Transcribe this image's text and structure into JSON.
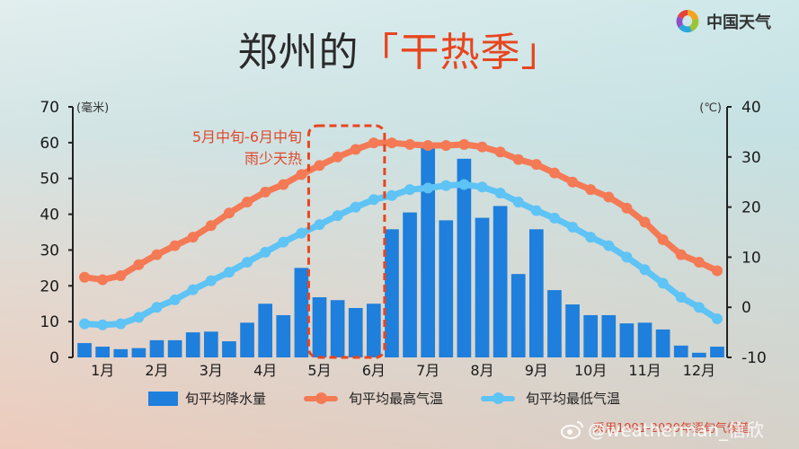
{
  "header": {
    "title_prefix": "郑州的",
    "title_highlight": "「干热季」",
    "logo_text": "中国天气"
  },
  "annotation": {
    "line1": "5月中旬-6月中旬",
    "line2": "雨少天热"
  },
  "axes": {
    "left_unit": "(毫米)",
    "right_unit": "(℃)",
    "left_ticks": [
      "0",
      "10",
      "20",
      "30",
      "40",
      "50",
      "60",
      "70"
    ],
    "right_ticks": [
      "-10",
      "0",
      "10",
      "20",
      "30",
      "40"
    ],
    "x_ticks": [
      "1月",
      "2月",
      "3月",
      "4月",
      "5月",
      "6月",
      "7月",
      "8月",
      "9月",
      "10月",
      "11月",
      "12月"
    ]
  },
  "legend": {
    "precip": "旬平均降水量",
    "tmax": "旬平均最高气温",
    "tmin": "旬平均最低气温"
  },
  "footer": {
    "watermark": "@weatherman_信欣",
    "source": "采用1991-2020年逐旬气候值"
  },
  "colors": {
    "bar": "#1e7fdc",
    "tmax": "#f47a55",
    "tmin": "#5ec3f5",
    "highlight": "#e8451f"
  },
  "chart_data": {
    "type": "bar+line",
    "title": "郑州的「干热季」",
    "categories": [
      "1月上",
      "1月中",
      "1月下",
      "2月上",
      "2月中",
      "2月下",
      "3月上",
      "3月中",
      "3月下",
      "4月上",
      "4月中",
      "4月下",
      "5月上",
      "5月中",
      "5月下",
      "6月上",
      "6月中",
      "6月下",
      "7月上",
      "7月中",
      "7月下",
      "8月上",
      "8月中",
      "8月下",
      "9月上",
      "9月中",
      "9月下",
      "10月上",
      "10月中",
      "10月下",
      "11月上",
      "11月中",
      "11月下",
      "12月上",
      "12月中",
      "12月下"
    ],
    "x_tick_labels": [
      "1月",
      "2月",
      "3月",
      "4月",
      "5月",
      "6月",
      "7月",
      "8月",
      "9月",
      "10月",
      "11月",
      "12月"
    ],
    "series": [
      {
        "name": "旬平均降水量",
        "type": "bar",
        "axis": "left",
        "unit": "毫米",
        "values": [
          4.0,
          3.0,
          2.3,
          2.6,
          4.8,
          4.8,
          7.0,
          7.2,
          4.5,
          9.7,
          15.0,
          11.8,
          25.0,
          16.8,
          16.0,
          13.8,
          15.0,
          35.8,
          40.5,
          60.0,
          38.3,
          55.5,
          39.0,
          42.3,
          23.3,
          35.8,
          18.8,
          14.8,
          11.8,
          11.8,
          9.5,
          9.7,
          7.8,
          3.3,
          1.3,
          3.0
        ]
      },
      {
        "name": "旬平均最高气温",
        "type": "line",
        "axis": "right",
        "unit": "℃",
        "values": [
          6.0,
          5.5,
          6.3,
          8.5,
          10.5,
          12.3,
          14.0,
          16.3,
          18.8,
          21.0,
          23.0,
          24.5,
          26.5,
          28.3,
          30.0,
          31.5,
          32.8,
          32.8,
          32.5,
          32.3,
          32.3,
          32.5,
          32.0,
          31.0,
          29.5,
          28.5,
          26.8,
          25.0,
          23.5,
          22.0,
          19.8,
          17.0,
          13.5,
          10.5,
          9.0,
          7.3
        ]
      },
      {
        "name": "旬平均最低气温",
        "type": "line",
        "axis": "right",
        "unit": "℃",
        "values": [
          -3.3,
          -3.5,
          -3.3,
          -2.0,
          0.0,
          1.5,
          3.5,
          5.3,
          7.0,
          9.0,
          11.0,
          13.0,
          14.8,
          16.5,
          18.3,
          20.0,
          21.5,
          22.3,
          23.5,
          23.8,
          24.3,
          24.5,
          24.0,
          22.8,
          21.0,
          19.3,
          17.8,
          16.0,
          14.0,
          12.3,
          10.0,
          7.5,
          4.8,
          2.0,
          0.0,
          -2.3
        ]
      }
    ],
    "left_axis": {
      "label": "(毫米)",
      "range": [
        0,
        70
      ],
      "ticks": [
        0,
        10,
        20,
        30,
        40,
        50,
        60,
        70
      ]
    },
    "right_axis": {
      "label": "(℃)",
      "range": [
        -10,
        40
      ],
      "ticks": [
        -10,
        0,
        10,
        20,
        30,
        40
      ]
    },
    "highlight_region": {
      "from": "5月中",
      "to": "6月中",
      "label": "5月中旬-6月中旬 雨少天热",
      "style": "dashed red box"
    },
    "legend_position": "bottom",
    "grid": false
  }
}
